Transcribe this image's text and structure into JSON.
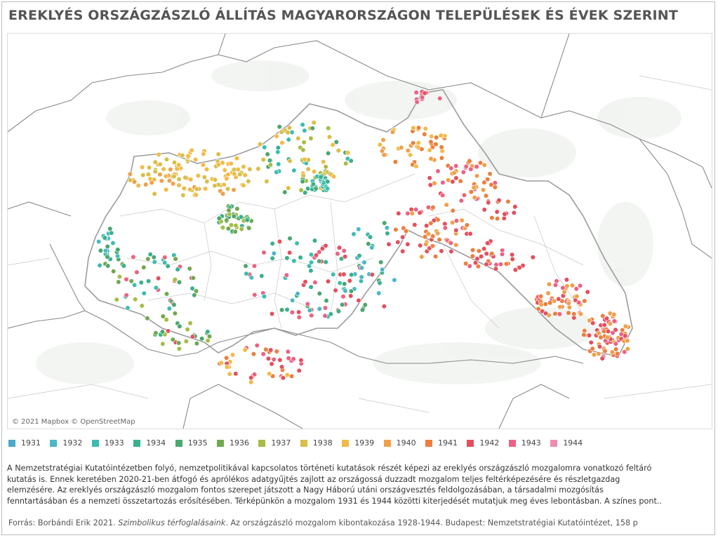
{
  "title": "EREKLYÉS ORSZÁGZÁSZLÓ ÁLLÍTÁS MAGYARORSZÁGON TELEPÜLÉSEK ÉS ÉVEK SZERINT",
  "map": {
    "attribution": "© 2021 Mapbox © OpenStreetMap",
    "basemap": "light",
    "region": "Carpathian Basin (Hungary 1938–1944 borders)",
    "point_color_by": "year"
  },
  "legend": [
    {
      "label": "1931",
      "color": "#4aaac8"
    },
    {
      "label": "1932",
      "color": "#4ab8c8"
    },
    {
      "label": "1933",
      "color": "#3dbdb0"
    },
    {
      "label": "1934",
      "color": "#3ab08c"
    },
    {
      "label": "1935",
      "color": "#4aa86e"
    },
    {
      "label": "1936",
      "color": "#70a850"
    },
    {
      "label": "1937",
      "color": "#a6bd45"
    },
    {
      "label": "1938",
      "color": "#d9bf4a"
    },
    {
      "label": "1939",
      "color": "#f2bb48"
    },
    {
      "label": "1940",
      "color": "#f0a04a"
    },
    {
      "label": "1941",
      "color": "#ec7f3e"
    },
    {
      "label": "1942",
      "color": "#e4505e"
    },
    {
      "label": "1943",
      "color": "#ec6282"
    },
    {
      "label": "1944",
      "color": "#f08cb0"
    }
  ],
  "description": [
    "A Nemzetstratégiai Kutatóintézetben folyó, nemzetpolitikával kapcsolatos történeti kutatások részét képezi az ereklyés országzászló mozgalomra vonatkozó feltáró",
    "kutatás is. Ennek keretében 2020-21-ben átfogó és aprólékos adatgyűjtés zajlott az országossá duzzadt mozgalom teljes feltérképezésére és részletgazdag",
    "elemzésére. Az ereklyés országzászló mozgalom fontos szerepet játszott a Nagy Háború utáni országvesztés  feldolgozásában, a társadalmi mozgósítás",
    "fenntartásában és a nemzeti összetartozás erősítésében. Térképünkön a mozgalom 1931 és 1944 közötti kiterjedését mutatjuk meg éves lebontásban. A színes pont.."
  ],
  "source": {
    "prefix": "Forrás: Borbándi Erik 2021. ",
    "italic": "Szimbolikus térfoglalásaink",
    "mid": ". Az országzászló mozgalom kibontakozása 1928-1944",
    "suffix": ". Budapest: Nemzetstratégiai Kutatóintézet, 158 p"
  }
}
